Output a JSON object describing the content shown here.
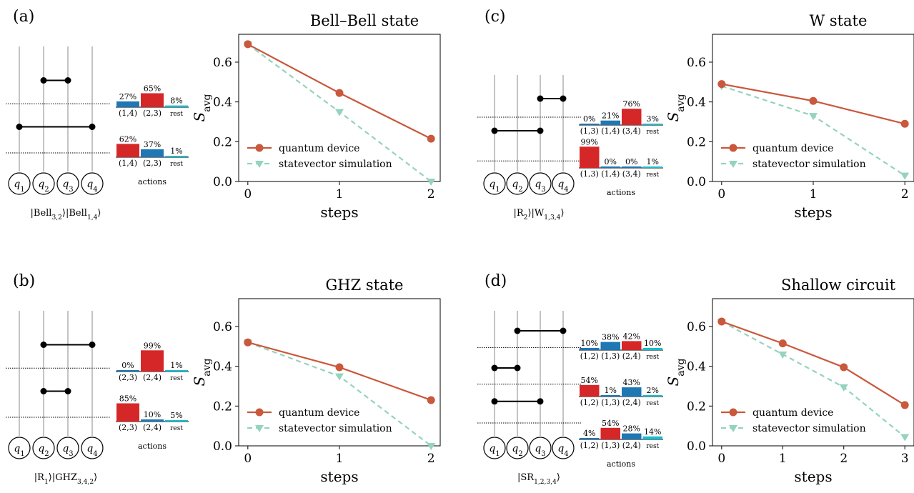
{
  "colors": {
    "quantum": "#c9583c",
    "simulation": "#95d3bd",
    "red_bar": "#d62728",
    "blue_bar": "#1f77b4",
    "cyan_bar": "#17becf"
  },
  "panels": [
    {
      "label": "(a)",
      "state_label": "|Bell3,2⟩|Bell1,4⟩",
      "actions_label": "actions",
      "qubits": [
        "q1",
        "q2",
        "q3",
        "q4"
      ],
      "bar_groups": [
        {
          "bars": [
            {
              "label": "(1,4)",
              "value": 27,
              "text": "27%",
              "color": "blue"
            },
            {
              "label": "(2,3)",
              "value": 65,
              "text": "65%",
              "color": "red"
            },
            {
              "label": "rest",
              "value": 8,
              "text": "8%",
              "color": "cyan"
            }
          ]
        },
        {
          "bars": [
            {
              "label": "(1,4)",
              "value": 62,
              "text": "62%",
              "color": "red"
            },
            {
              "label": "(2,3)",
              "value": 37,
              "text": "37%",
              "color": "blue"
            },
            {
              "label": "rest",
              "value": 1,
              "text": "1%",
              "color": "cyan"
            }
          ]
        }
      ]
    },
    {
      "label": "(b)",
      "state_label": "|R1⟩|GHZ3,4,2⟩",
      "actions_label": "actions",
      "qubits": [
        "q1",
        "q2",
        "q3",
        "q4"
      ],
      "bar_groups": [
        {
          "bars": [
            {
              "label": "(2,3)",
              "value": 0,
              "text": "0%",
              "color": "blue"
            },
            {
              "label": "(2,4)",
              "value": 99,
              "text": "99%",
              "color": "red"
            },
            {
              "label": "rest",
              "value": 1,
              "text": "1%",
              "color": "cyan"
            }
          ]
        },
        {
          "bars": [
            {
              "label": "(2,3)",
              "value": 85,
              "text": "85%",
              "color": "red"
            },
            {
              "label": "(2,4)",
              "value": 10,
              "text": "10%",
              "color": "blue"
            },
            {
              "label": "rest",
              "value": 5,
              "text": "5%",
              "color": "cyan"
            }
          ]
        }
      ]
    },
    {
      "label": "(c)",
      "state_label": "|R2⟩|W1,3,4⟩",
      "actions_label": "actions",
      "qubits": [
        "q1",
        "q2",
        "q3",
        "q4"
      ],
      "bar_groups": [
        {
          "bars": [
            {
              "label": "(1,3)",
              "value": 0,
              "text": "0%",
              "color": "blue"
            },
            {
              "label": "(1,4)",
              "value": 21,
              "text": "21%",
              "color": "blue"
            },
            {
              "label": "(3,4)",
              "value": 76,
              "text": "76%",
              "color": "red"
            },
            {
              "label": "rest",
              "value": 3,
              "text": "3%",
              "color": "cyan"
            }
          ]
        },
        {
          "bars": [
            {
              "label": "(1,3)",
              "value": 99,
              "text": "99%",
              "color": "red"
            },
            {
              "label": "(1,4)",
              "value": 0,
              "text": "0%",
              "color": "blue"
            },
            {
              "label": "(3,4)",
              "value": 0,
              "text": "0%",
              "color": "blue"
            },
            {
              "label": "rest",
              "value": 1,
              "text": "1%",
              "color": "cyan"
            }
          ]
        }
      ]
    },
    {
      "label": "(d)",
      "state_label": "|SR1,2,3,4⟩",
      "actions_label": "actions",
      "qubits": [
        "q1",
        "q2",
        "q3",
        "q4"
      ],
      "bar_groups": [
        {
          "bars": [
            {
              "label": "(1,2)",
              "value": 10,
              "text": "10%",
              "color": "blue"
            },
            {
              "label": "(1,3)",
              "value": 38,
              "text": "38%",
              "color": "blue"
            },
            {
              "label": "(2,4)",
              "value": 42,
              "text": "42%",
              "color": "red"
            },
            {
              "label": "rest",
              "value": 10,
              "text": "10%",
              "color": "cyan"
            }
          ]
        },
        {
          "bars": [
            {
              "label": "(1,2)",
              "value": 54,
              "text": "54%",
              "color": "red"
            },
            {
              "label": "(1,3)",
              "value": 1,
              "text": "1%",
              "color": "blue"
            },
            {
              "label": "(2,4)",
              "value": 43,
              "text": "43%",
              "color": "blue"
            },
            {
              "label": "rest",
              "value": 2,
              "text": "2%",
              "color": "cyan"
            }
          ]
        },
        {
          "bars": [
            {
              "label": "(1,2)",
              "value": 4,
              "text": "4%",
              "color": "blue"
            },
            {
              "label": "(1,3)",
              "value": 54,
              "text": "54%",
              "color": "red"
            },
            {
              "label": "(2,4)",
              "value": 28,
              "text": "28%",
              "color": "blue"
            },
            {
              "label": "rest",
              "value": 14,
              "text": "14%",
              "color": "cyan"
            }
          ]
        }
      ]
    }
  ],
  "chart_data": [
    {
      "type": "line",
      "title": "Bell–Bell state",
      "xlabel": "steps",
      "ylabel": "S_avg",
      "x": [
        0,
        1,
        2
      ],
      "xlim": [
        -0.1,
        2.1
      ],
      "ylim": [
        0,
        0.74
      ],
      "yticks": [
        "0.0",
        "0.2",
        "0.4",
        "0.6"
      ],
      "xticks": [
        "0",
        "1",
        "2"
      ],
      "grid": false,
      "legend": "lower-left",
      "series": [
        {
          "name": "quantum device",
          "values": [
            0.69,
            0.445,
            0.215
          ],
          "style": "solid",
          "marker": "circle",
          "color": "#c9583c"
        },
        {
          "name": "statevector simulation",
          "values": [
            0.69,
            0.35,
            0.0
          ],
          "style": "dashed",
          "marker": "triangle-down",
          "color": "#95d3bd"
        }
      ]
    },
    {
      "type": "line",
      "title": "GHZ state",
      "xlabel": "steps",
      "ylabel": "S_avg",
      "x": [
        0,
        1,
        2
      ],
      "xlim": [
        -0.1,
        2.1
      ],
      "ylim": [
        0,
        0.74
      ],
      "yticks": [
        "0.0",
        "0.2",
        "0.4",
        "0.6"
      ],
      "xticks": [
        "0",
        "1",
        "2"
      ],
      "grid": false,
      "legend": "lower-left",
      "series": [
        {
          "name": "quantum device",
          "values": [
            0.52,
            0.395,
            0.23
          ],
          "style": "solid",
          "marker": "circle",
          "color": "#c9583c"
        },
        {
          "name": "statevector simulation",
          "values": [
            0.52,
            0.35,
            0.0
          ],
          "style": "dashed",
          "marker": "triangle-down",
          "color": "#95d3bd"
        }
      ]
    },
    {
      "type": "line",
      "title": "W state",
      "xlabel": "steps",
      "ylabel": "S_avg",
      "x": [
        0,
        1,
        2
      ],
      "xlim": [
        -0.1,
        2.1
      ],
      "ylim": [
        0,
        0.74
      ],
      "yticks": [
        "0.0",
        "0.2",
        "0.4",
        "0.6"
      ],
      "xticks": [
        "0",
        "1",
        "2"
      ],
      "grid": false,
      "legend": "lower-left",
      "series": [
        {
          "name": "quantum device",
          "values": [
            0.49,
            0.405,
            0.29
          ],
          "style": "solid",
          "marker": "circle",
          "color": "#c9583c"
        },
        {
          "name": "statevector simulation",
          "values": [
            0.48,
            0.33,
            0.03
          ],
          "style": "dashed",
          "marker": "triangle-down",
          "color": "#95d3bd"
        }
      ]
    },
    {
      "type": "line",
      "title": "Shallow circuit",
      "xlabel": "steps",
      "ylabel": "S_avg",
      "x": [
        0,
        1,
        2,
        3
      ],
      "xlim": [
        -0.15,
        3.15
      ],
      "ylim": [
        0,
        0.74
      ],
      "yticks": [
        "0.0",
        "0.2",
        "0.4",
        "0.6"
      ],
      "xticks": [
        "0",
        "1",
        "2",
        "3"
      ],
      "grid": false,
      "legend": "lower-left",
      "series": [
        {
          "name": "quantum device",
          "values": [
            0.625,
            0.515,
            0.395,
            0.205
          ],
          "style": "solid",
          "marker": "circle",
          "color": "#c9583c"
        },
        {
          "name": "statevector simulation",
          "values": [
            0.625,
            0.46,
            0.295,
            0.045
          ],
          "style": "dashed",
          "marker": "triangle-down",
          "color": "#95d3bd"
        }
      ]
    }
  ]
}
